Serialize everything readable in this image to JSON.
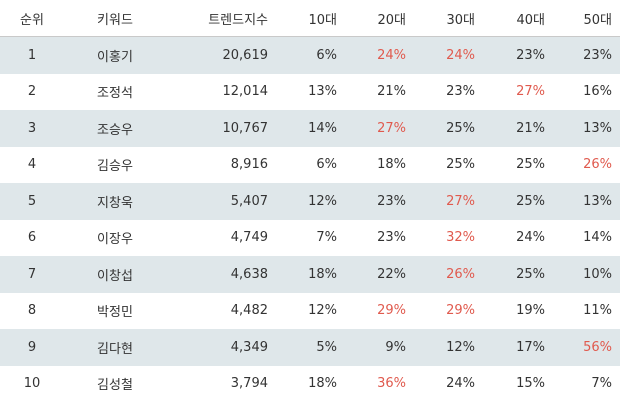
{
  "colors": {
    "shade": "#dfe7ea",
    "highlight": "#e05a4e",
    "text": "#333333"
  },
  "headers": [
    "순위",
    "키워드",
    "트렌드지수",
    "10대",
    "20대",
    "30대",
    "40대",
    "50대"
  ],
  "rows": [
    {
      "rank": "1",
      "keyword": "이홍기",
      "index": "20,619",
      "a10": "6%",
      "a20": "24%",
      "a30": "24%",
      "a40": "23%",
      "a50": "23%",
      "hi": [
        "a20",
        "a30"
      ]
    },
    {
      "rank": "2",
      "keyword": "조정석",
      "index": "12,014",
      "a10": "13%",
      "a20": "21%",
      "a30": "23%",
      "a40": "27%",
      "a50": "16%",
      "hi": [
        "a40"
      ]
    },
    {
      "rank": "3",
      "keyword": "조승우",
      "index": "10,767",
      "a10": "14%",
      "a20": "27%",
      "a30": "25%",
      "a40": "21%",
      "a50": "13%",
      "hi": [
        "a20"
      ]
    },
    {
      "rank": "4",
      "keyword": "김승우",
      "index": "8,916",
      "a10": "6%",
      "a20": "18%",
      "a30": "25%",
      "a40": "25%",
      "a50": "26%",
      "hi": [
        "a50"
      ]
    },
    {
      "rank": "5",
      "keyword": "지창욱",
      "index": "5,407",
      "a10": "12%",
      "a20": "23%",
      "a30": "27%",
      "a40": "25%",
      "a50": "13%",
      "hi": [
        "a30"
      ]
    },
    {
      "rank": "6",
      "keyword": "이장우",
      "index": "4,749",
      "a10": "7%",
      "a20": "23%",
      "a30": "32%",
      "a40": "24%",
      "a50": "14%",
      "hi": [
        "a30"
      ]
    },
    {
      "rank": "7",
      "keyword": "이창섭",
      "index": "4,638",
      "a10": "18%",
      "a20": "22%",
      "a30": "26%",
      "a40": "25%",
      "a50": "10%",
      "hi": [
        "a30"
      ]
    },
    {
      "rank": "8",
      "keyword": "박정민",
      "index": "4,482",
      "a10": "12%",
      "a20": "29%",
      "a30": "29%",
      "a40": "19%",
      "a50": "11%",
      "hi": [
        "a20",
        "a30"
      ]
    },
    {
      "rank": "9",
      "keyword": "김다현",
      "index": "4,349",
      "a10": "5%",
      "a20": "9%",
      "a30": "12%",
      "a40": "17%",
      "a50": "56%",
      "hi": [
        "a50"
      ]
    },
    {
      "rank": "10",
      "keyword": "김성철",
      "index": "3,794",
      "a10": "18%",
      "a20": "36%",
      "a30": "24%",
      "a40": "15%",
      "a50": "7%",
      "hi": [
        "a20"
      ]
    }
  ]
}
